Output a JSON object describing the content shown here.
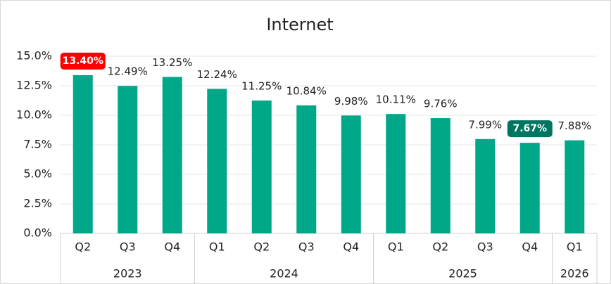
{
  "chart_data": {
    "type": "bar",
    "title": "Internet",
    "categories": [
      "Q2",
      "Q3",
      "Q4",
      "Q1",
      "Q2",
      "Q3",
      "Q4",
      "Q1",
      "Q2",
      "Q3",
      "Q4",
      "Q1"
    ],
    "years": [
      "2023",
      null,
      null,
      "2024",
      null,
      null,
      null,
      "2025",
      null,
      null,
      null,
      "2026"
    ],
    "values": [
      13.4,
      12.49,
      13.25,
      12.24,
      11.25,
      10.84,
      9.98,
      10.11,
      9.76,
      7.99,
      7.67,
      7.88
    ],
    "value_labels": [
      "13.40%",
      "12.49%",
      "13.25%",
      "12.24%",
      "11.25%",
      "10.84%",
      "9.98%",
      "10.11%",
      "9.76%",
      "7.99%",
      "7.67%",
      "7.88%"
    ],
    "color": "#00a88a",
    "highlight_max_color": "#ff0000",
    "highlight_min_color": "#007560",
    "ylim": [
      0,
      15
    ],
    "yticks": [
      {
        "value": 0,
        "label": "0.0%"
      },
      {
        "value": 2.5,
        "label": "2.5%"
      },
      {
        "value": 5,
        "label": "5.0%"
      },
      {
        "value": 7.5,
        "label": "7.5%"
      },
      {
        "value": 10,
        "label": "10.0%"
      },
      {
        "value": 12.5,
        "label": "12.5%"
      },
      {
        "value": 15,
        "label": "15.0%"
      }
    ],
    "grid": true
  }
}
